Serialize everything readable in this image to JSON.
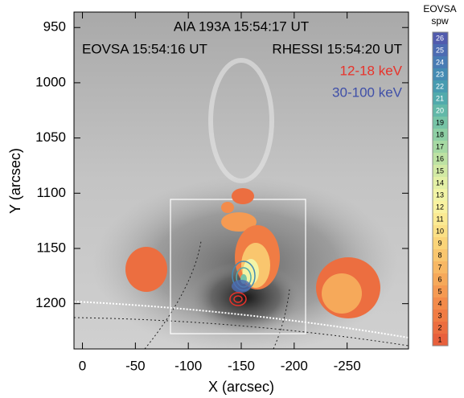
{
  "chart_data": {
    "type": "image",
    "xlabel": "X (arcsec)",
    "ylabel": "Y (arcsec)",
    "xlim": [
      8,
      -308
    ],
    "ylim": [
      936,
      1241
    ],
    "xticks": [
      0,
      -50,
      -100,
      -150,
      -200,
      -250
    ],
    "yticks": [
      950,
      1000,
      1050,
      1100,
      1150,
      1200
    ],
    "annotations": [
      {
        "text": "AIA 193A  15:54:17 UT",
        "color": "#000000"
      },
      {
        "text": "EOVSA 15:54:16 UT",
        "color": "#000000"
      },
      {
        "text": "RHESSI  15:54:20 UT",
        "color": "#000000"
      },
      {
        "text": "12-18 keV",
        "color": "#e8322a"
      },
      {
        "text": "30-100 keV",
        "color": "#3f4fa8"
      }
    ],
    "colorbar": {
      "label": "EOVSA",
      "sublabel": "spw",
      "levels": [
        1,
        2,
        3,
        4,
        5,
        6,
        7,
        8,
        9,
        10,
        11,
        12,
        13,
        14,
        15,
        16,
        17,
        18,
        19,
        20,
        21,
        22,
        23,
        24,
        25,
        26
      ],
      "colors": [
        "#e8603c",
        "#ec6e40",
        "#f07c44",
        "#f38b4a",
        "#f59a52",
        "#f6a95a",
        "#f8b864",
        "#f9c66e",
        "#fad479",
        "#fbe086",
        "#fbea93",
        "#f9f2a1",
        "#f2f4a6",
        "#e4f0a6",
        "#d2e9a4",
        "#bde2a3",
        "#a6d9a3",
        "#8ecfa4",
        "#77c4a6",
        "#62b8a8",
        "#51aaac",
        "#479bb0",
        "#458bb3",
        "#487bb4",
        "#4c6bb2",
        "#515bad"
      ]
    }
  }
}
